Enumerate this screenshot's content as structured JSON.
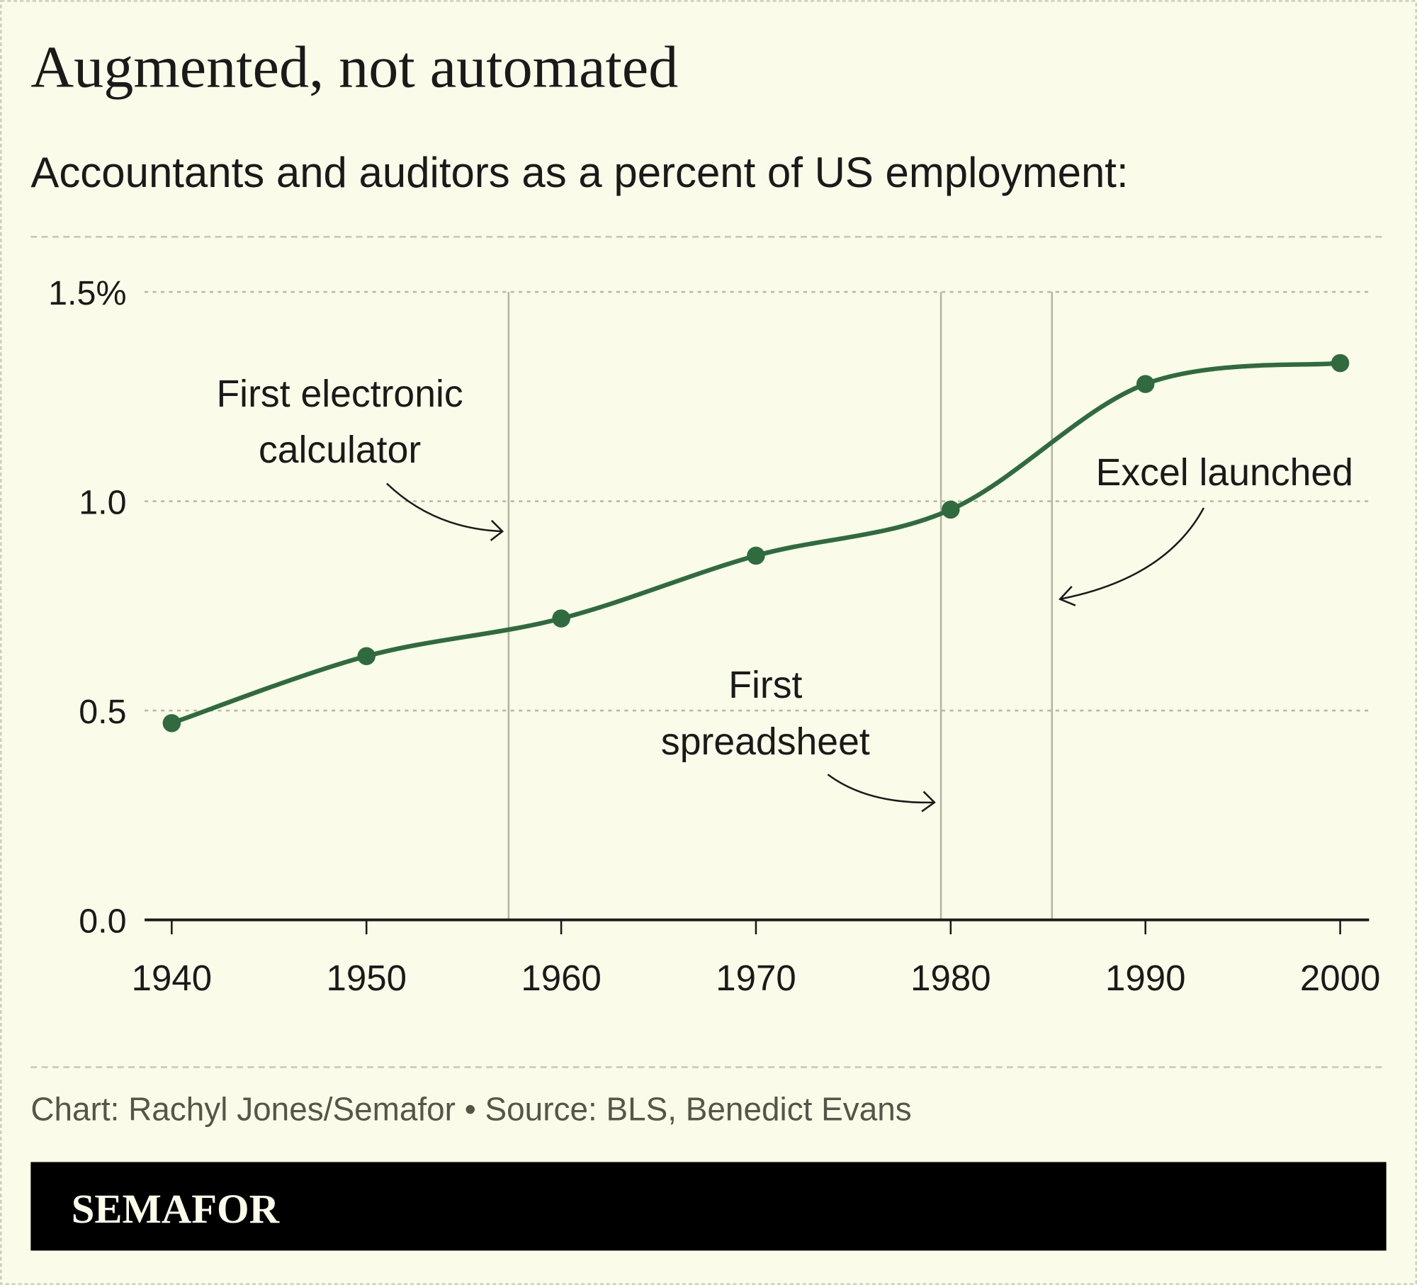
{
  "title": "Augmented, not automated",
  "subtitle": "Accountants and auditors as a percent of US employment:",
  "footer": {
    "credit": "Chart: Rachyl Jones/Semafor • Source: BLS, Benedict Evans",
    "logo_text": "SEMAFOR"
  },
  "colors": {
    "background": "#fbfbe9",
    "line": "#2f6b3f",
    "text": "#1a1a1a",
    "credit": "#555548",
    "logo_bar": "#000000"
  },
  "chart_data": {
    "type": "line",
    "x": [
      1940,
      1950,
      1960,
      1970,
      1980,
      1990,
      2000
    ],
    "series": [
      {
        "values": [
          0.47,
          0.63,
          0.72,
          0.87,
          0.98,
          1.28,
          1.33
        ]
      }
    ],
    "xlim": [
      1940,
      2000
    ],
    "ylim": [
      0,
      1.5
    ],
    "x_ticks": [
      "1940",
      "1950",
      "1960",
      "1970",
      "1980",
      "1990",
      "2000"
    ],
    "y_ticks": [
      {
        "value": 0,
        "label": "0.0"
      },
      {
        "value": 0.5,
        "label": "0.5"
      },
      {
        "value": 1.0,
        "label": "1.0"
      },
      {
        "value": 1.5,
        "label": "1.5%"
      }
    ],
    "grid": "horizontal dotted",
    "annotations": [
      {
        "year": 1957.3,
        "lines": [
          "First electronic",
          "calculator"
        ]
      },
      {
        "year": 1979.5,
        "lines": [
          "First",
          "spreadsheet"
        ]
      },
      {
        "year": 1985.2,
        "lines": [
          "Excel launched"
        ]
      }
    ]
  }
}
